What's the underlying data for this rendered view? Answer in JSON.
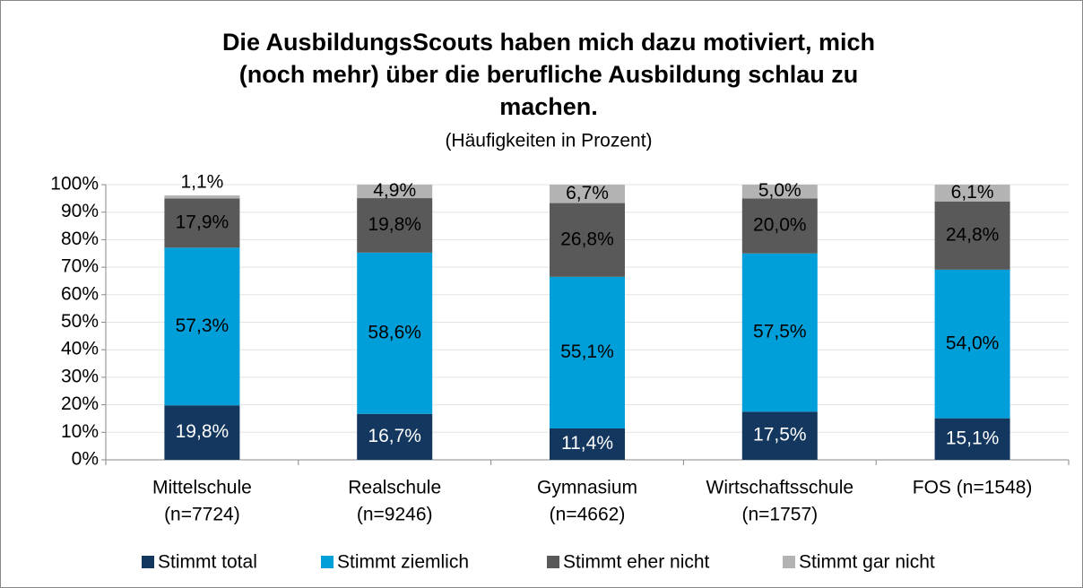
{
  "chart_data": {
    "type": "stacked_bar",
    "title": [
      "Die AusbildungsScouts haben mich dazu motiviert, mich",
      "(noch mehr) über die berufliche Ausbildung schlau zu",
      "machen."
    ],
    "subtitle": "(Häufigkeiten in Prozent)",
    "categories": [
      [
        "Mittelschule",
        "(n=7724)"
      ],
      [
        "Realschule",
        "(n=9246)"
      ],
      [
        "Gymnasium",
        "(n=4662)"
      ],
      [
        "Wirtschaftsschule",
        "(n=1757)"
      ],
      [
        "FOS (n=1548)"
      ]
    ],
    "series": [
      {
        "name": "Stimmt total",
        "color": "#13375e",
        "values": [
          19.8,
          16.7,
          11.4,
          17.5,
          15.1
        ],
        "value_labels": [
          "19,8%",
          "16,7%",
          "11,4%",
          "17,5%",
          "15,1%"
        ]
      },
      {
        "name": "Stimmt ziemlich",
        "color": "#009fda",
        "values": [
          57.3,
          58.6,
          55.1,
          57.5,
          54.0
        ],
        "value_labels": [
          "57,3%",
          "58,6%",
          "55,1%",
          "57,5%",
          "54,0%"
        ]
      },
      {
        "name": "Stimmt eher nicht",
        "color": "#595959",
        "values": [
          17.9,
          19.8,
          26.8,
          20.0,
          24.8
        ],
        "value_labels": [
          "17,9%",
          "19,8%",
          "26,8%",
          "20,0%",
          "24,8%"
        ]
      },
      {
        "name": "Stimmt gar nicht",
        "color": "#b3b3b3",
        "values": [
          1.1,
          4.9,
          6.7,
          5.0,
          6.1
        ],
        "value_labels": [
          "1,1%",
          "4,9%",
          "6,7%",
          "5,0%",
          "6,1%"
        ]
      }
    ],
    "ylim": [
      0,
      100
    ],
    "yticks": [
      {
        "value": 0,
        "label": "0%"
      },
      {
        "value": 10,
        "label": "10%"
      },
      {
        "value": 20,
        "label": "20%"
      },
      {
        "value": 30,
        "label": "30%"
      },
      {
        "value": 40,
        "label": "40%"
      },
      {
        "value": 50,
        "label": "50%"
      },
      {
        "value": 60,
        "label": "60%"
      },
      {
        "value": 70,
        "label": "70%"
      },
      {
        "value": 80,
        "label": "80%"
      },
      {
        "value": 90,
        "label": "90%"
      },
      {
        "value": 100,
        "label": "100%"
      }
    ],
    "grid": true,
    "legend": "bottom"
  }
}
